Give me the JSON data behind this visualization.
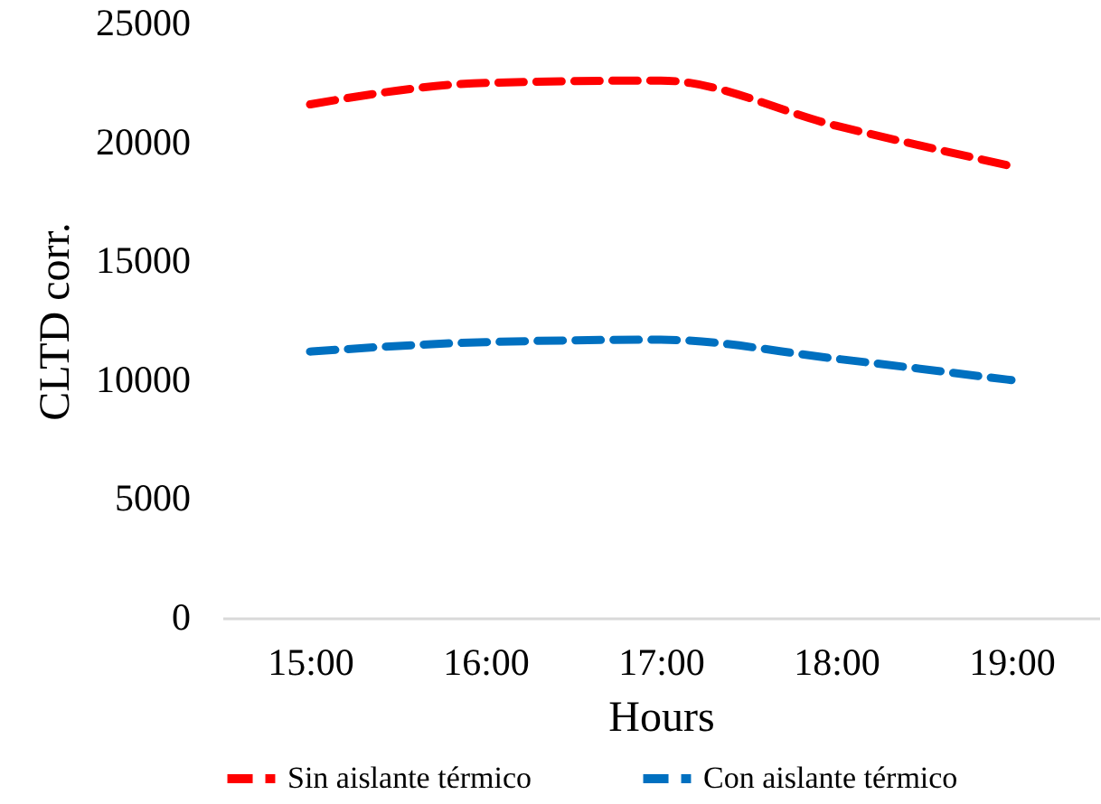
{
  "chart_data": {
    "type": "line",
    "xlabel": "Hours",
    "ylabel": "CLTD corr.",
    "categories": [
      "15:00",
      "16:00",
      "17:00",
      "18:00",
      "19:00"
    ],
    "series": [
      {
        "name": "Sin aislante térmico",
        "color": "#ff0000",
        "values": [
          21600,
          22500,
          22600,
          20700,
          19000
        ]
      },
      {
        "name": "Con aislante térmico",
        "color": "#0070c0",
        "values": [
          11200,
          11600,
          11700,
          10900,
          10000
        ]
      }
    ],
    "ylim": [
      0,
      25000
    ],
    "yticks": [
      0,
      5000,
      10000,
      15000,
      20000,
      25000
    ],
    "grid": false,
    "legend": "bottom",
    "line_style": "dashed"
  }
}
